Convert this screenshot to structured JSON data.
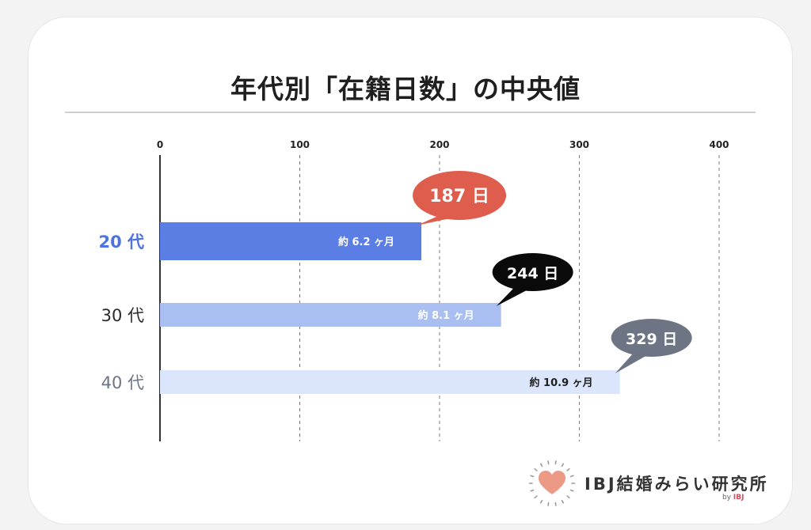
{
  "logo": {
    "text": "IBJ結婚みらい研究所",
    "by_label": "by",
    "by_brand": "IBJ",
    "icon": "heart-sunburst-icon",
    "heart_color": "#ec9a86"
  },
  "chart_data": {
    "type": "bar",
    "orientation": "horizontal",
    "title": "年代別「在籍日数」の中央値",
    "categories": [
      "20 代",
      "30 代",
      "40 代"
    ],
    "values": [
      187,
      244,
      329
    ],
    "value_labels": [
      "187 日",
      "244 日",
      "329 日"
    ],
    "bar_labels": [
      "約 6.2 ヶ月",
      "約 8.1 ヶ月",
      "約 10.9 ヶ月"
    ],
    "xlim": [
      0,
      400
    ],
    "xticks": [
      0,
      100,
      200,
      300,
      400
    ],
    "grid": "vertical dashed",
    "bar_colors": [
      "#5b7ee5",
      "#a9bff2",
      "#dbe5fb"
    ],
    "bar_label_colors": [
      "#ffffff",
      "#ffffff",
      "#1f1f1f"
    ],
    "bubble_colors": [
      "#de5d4c",
      "#0a0a0a",
      "#6d7584"
    ],
    "category_label_colors": [
      "#4e73df",
      "#2a2a2a",
      "#6d7584"
    ]
  }
}
